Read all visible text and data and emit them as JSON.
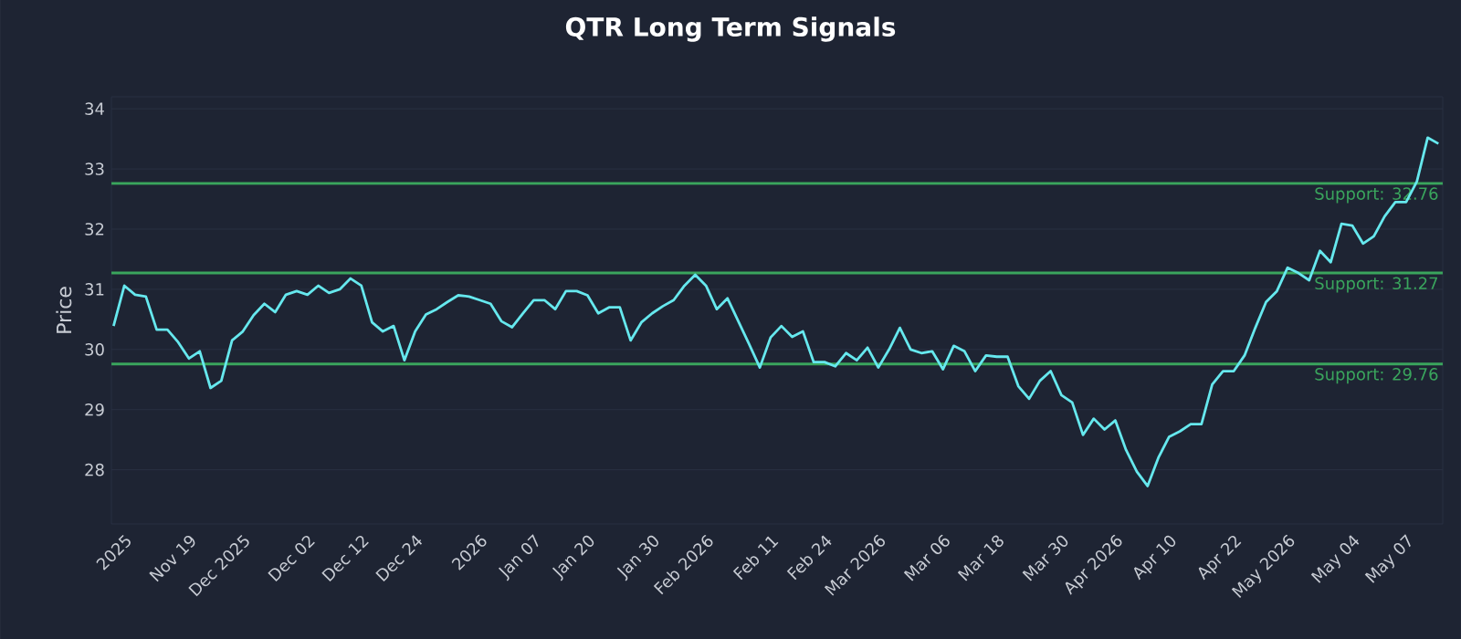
{
  "chart_data": {
    "type": "line",
    "title": "QTR Long Term Signals",
    "ylabel": "Price",
    "categories": [
      null,
      "2025",
      null,
      null,
      null,
      null,
      null,
      "Nov 19",
      null,
      null,
      null,
      null,
      "Dec 2025",
      null,
      null,
      null,
      null,
      null,
      "Dec 02",
      null,
      null,
      null,
      null,
      "Dec 12",
      null,
      null,
      null,
      null,
      "Dec 24",
      null,
      null,
      null,
      null,
      null,
      "2026",
      null,
      null,
      null,
      null,
      "Jan 07",
      null,
      null,
      null,
      null,
      "Jan 20",
      null,
      null,
      null,
      null,
      null,
      "Jan 30",
      null,
      null,
      null,
      null,
      "Feb 2026",
      null,
      null,
      null,
      null,
      null,
      "Feb 11",
      null,
      null,
      null,
      null,
      "Feb 24",
      null,
      null,
      null,
      null,
      "Mar 2026",
      null,
      null,
      null,
      null,
      null,
      "Mar 06",
      null,
      null,
      null,
      null,
      "Mar 18",
      null,
      null,
      null,
      null,
      null,
      "Mar 30",
      null,
      null,
      null,
      null,
      "Apr 2026",
      null,
      null,
      null,
      null,
      "Apr 10",
      null,
      null,
      null,
      null,
      null,
      "Apr 22",
      null,
      null,
      null,
      null,
      "May 2026",
      null,
      null,
      null,
      null,
      null,
      "May 04",
      null,
      null,
      null,
      null,
      "May 07",
      null,
      null,
      null
    ],
    "series": [
      {
        "color": "#66e8ee",
        "values": [
          30.39,
          31.06,
          30.91,
          30.88,
          30.33,
          30.33,
          30.12,
          29.85,
          29.97,
          29.36,
          29.48,
          30.15,
          30.3,
          30.57,
          30.76,
          30.62,
          30.91,
          30.97,
          30.91,
          31.06,
          30.94,
          31.0,
          31.18,
          31.06,
          30.45,
          30.3,
          30.39,
          29.82,
          30.3,
          30.58,
          30.67,
          30.79,
          30.9,
          30.88,
          30.82,
          30.76,
          30.47,
          30.37,
          30.6,
          30.82,
          30.82,
          30.67,
          30.97,
          30.97,
          30.9,
          30.6,
          30.7,
          30.7,
          30.15,
          30.45,
          30.6,
          30.72,
          30.82,
          31.06,
          31.24,
          31.06,
          30.67,
          30.85,
          30.47,
          30.09,
          29.7,
          30.2,
          30.39,
          30.21,
          30.3,
          29.79,
          29.79,
          29.72,
          29.94,
          29.82,
          30.03,
          29.7,
          30.0,
          30.36,
          30.0,
          29.94,
          29.97,
          29.67,
          30.06,
          29.97,
          29.64,
          29.9,
          29.88,
          29.88,
          29.39,
          29.18,
          29.48,
          29.64,
          29.24,
          29.12,
          28.58,
          28.85,
          28.67,
          28.82,
          28.33,
          27.97,
          27.73,
          28.2,
          28.55,
          28.64,
          28.76,
          28.76,
          29.42,
          29.64,
          29.64,
          29.9,
          30.36,
          30.79,
          30.97,
          31.36,
          31.27,
          31.15,
          31.64,
          31.45,
          32.09,
          32.06,
          31.76,
          31.88,
          32.21,
          32.45,
          32.45,
          32.79,
          33.52,
          33.42
        ]
      }
    ],
    "ylim": [
      27.1,
      34.2
    ],
    "yticks": [
      28,
      29,
      30,
      31,
      32,
      33,
      34
    ],
    "ref_lines": [
      {
        "axis": "y",
        "value": 32.76,
        "label": "Support: 32.76",
        "color": "#3aa55d"
      },
      {
        "axis": "y",
        "value": 31.27,
        "label": "Support: 31.27",
        "color": "#3aa55d"
      },
      {
        "axis": "y",
        "value": 29.76,
        "label": "Support: 29.76",
        "color": "#3aa55d"
      }
    ],
    "grid": "y",
    "marker": "none",
    "line_style": "solid"
  }
}
